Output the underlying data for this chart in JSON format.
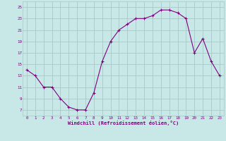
{
  "x": [
    0,
    1,
    2,
    3,
    4,
    5,
    6,
    7,
    8,
    9,
    10,
    11,
    12,
    13,
    14,
    15,
    16,
    17,
    18,
    19,
    20,
    21,
    22,
    23
  ],
  "y": [
    14,
    13,
    11,
    11,
    9,
    7.5,
    7,
    7,
    10,
    15.5,
    19,
    21,
    22,
    23,
    23,
    23.5,
    24.5,
    24.5,
    24,
    23,
    17,
    19.5,
    15.5,
    13
  ],
  "line_color": "#800080",
  "marker_color": "#800080",
  "bg_color": "#c8e8e8",
  "grid_color": "#a8c8c8",
  "xlabel": "Windchill (Refroidissement éolien,°C)",
  "xlabel_color": "#800080",
  "tick_color": "#800080",
  "ylim": [
    6,
    26
  ],
  "yticks": [
    7,
    9,
    11,
    13,
    15,
    17,
    19,
    21,
    23,
    25
  ],
  "xticks": [
    0,
    1,
    2,
    3,
    4,
    5,
    6,
    7,
    8,
    9,
    10,
    11,
    12,
    13,
    14,
    15,
    16,
    17,
    18,
    19,
    20,
    21,
    22,
    23
  ],
  "xlim": [
    -0.5,
    23.5
  ]
}
